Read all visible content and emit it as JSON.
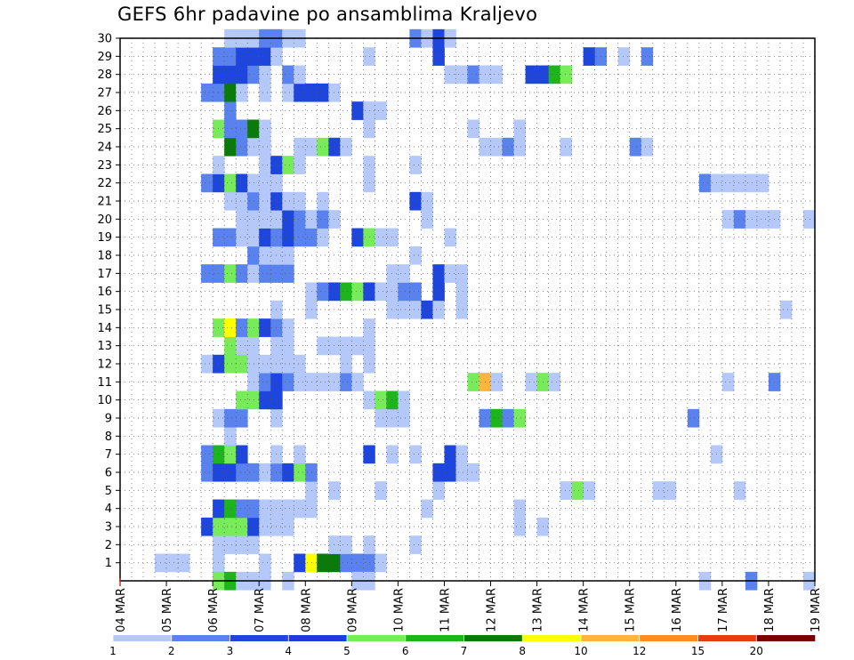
{
  "chart_data": {
    "type": "heatmap",
    "title": "GEFS 6hr padavine po ansamblima Kraljevo",
    "xlabel": "",
    "ylabel": "",
    "x_ticks": [
      "04 MAR",
      "05 MAR",
      "06 MAR",
      "07 MAR",
      "08 MAR",
      "09 MAR",
      "10 MAR",
      "11 MAR",
      "12 MAR",
      "13 MAR",
      "14 MAR",
      "15 MAR",
      "16 MAR",
      "17 MAR",
      "18 MAR",
      "19 MAR"
    ],
    "y_ticks": [
      "1",
      "2",
      "3",
      "4",
      "5",
      "6",
      "7",
      "8",
      "9",
      "10",
      "11",
      "12",
      "13",
      "14",
      "15",
      "16",
      "17",
      "18",
      "19",
      "20",
      "21",
      "22",
      "23",
      "24",
      "25",
      "26",
      "27",
      "28",
      "29",
      "30"
    ],
    "x_range_steps": [
      0,
      60
    ],
    "y_range_members": [
      0,
      30
    ],
    "grid": true,
    "colorbar": {
      "labels": [
        "1",
        "2",
        "3",
        "4",
        "5",
        "6",
        "7",
        "8",
        "10",
        "12",
        "15",
        "20"
      ],
      "colors": [
        "#b4c8fa",
        "#5a82ee",
        "#1e46dc",
        "#1e3cdc",
        "#78eb5a",
        "#1eb41e",
        "#0a7a0a",
        "#ffff00",
        "#ffb43c",
        "#ff8c1e",
        "#e63c14",
        "#780000"
      ]
    },
    "cells": [
      [
        3,
        1,
        1
      ],
      [
        4,
        1,
        1
      ],
      [
        5,
        1,
        1
      ],
      [
        8,
        1,
        1
      ],
      [
        12,
        1,
        1
      ],
      [
        15,
        1,
        3
      ],
      [
        16,
        1,
        8
      ],
      [
        17,
        1,
        7
      ],
      [
        18,
        1,
        7
      ],
      [
        19,
        1,
        2
      ],
      [
        20,
        1,
        2
      ],
      [
        21,
        1,
        2
      ],
      [
        22,
        1,
        1
      ],
      [
        8,
        2,
        1
      ],
      [
        9,
        2,
        1
      ],
      [
        10,
        2,
        1
      ],
      [
        11,
        2,
        1
      ],
      [
        18,
        2,
        1
      ],
      [
        19,
        2,
        1
      ],
      [
        21,
        2,
        1
      ],
      [
        25,
        2,
        1
      ],
      [
        7,
        3,
        3
      ],
      [
        8,
        3,
        5
      ],
      [
        9,
        3,
        5
      ],
      [
        10,
        3,
        5
      ],
      [
        11,
        3,
        3
      ],
      [
        12,
        3,
        1
      ],
      [
        13,
        3,
        1
      ],
      [
        14,
        3,
        1
      ],
      [
        34,
        3,
        1
      ],
      [
        36,
        3,
        1
      ],
      [
        8,
        4,
        3
      ],
      [
        9,
        4,
        6
      ],
      [
        10,
        4,
        2
      ],
      [
        11,
        4,
        2
      ],
      [
        12,
        4,
        1
      ],
      [
        13,
        4,
        1
      ],
      [
        14,
        4,
        1
      ],
      [
        15,
        4,
        1
      ],
      [
        16,
        4,
        1
      ],
      [
        26,
        4,
        1
      ],
      [
        34,
        4,
        1
      ],
      [
        16,
        5,
        1
      ],
      [
        18,
        5,
        1
      ],
      [
        22,
        5,
        1
      ],
      [
        27,
        5,
        1
      ],
      [
        38,
        5,
        1
      ],
      [
        39,
        5,
        5
      ],
      [
        40,
        5,
        1
      ],
      [
        46,
        5,
        1
      ],
      [
        47,
        5,
        1
      ],
      [
        53,
        5,
        1
      ],
      [
        7,
        6,
        2
      ],
      [
        8,
        6,
        3
      ],
      [
        9,
        6,
        3
      ],
      [
        10,
        6,
        2
      ],
      [
        11,
        6,
        2
      ],
      [
        12,
        6,
        1
      ],
      [
        13,
        6,
        2
      ],
      [
        14,
        6,
        3
      ],
      [
        15,
        6,
        5
      ],
      [
        16,
        6,
        2
      ],
      [
        27,
        6,
        3
      ],
      [
        28,
        6,
        3
      ],
      [
        29,
        6,
        1
      ],
      [
        30,
        6,
        1
      ],
      [
        7,
        7,
        2
      ],
      [
        8,
        7,
        6
      ],
      [
        9,
        7,
        5
      ],
      [
        10,
        7,
        3
      ],
      [
        13,
        7,
        1
      ],
      [
        15,
        7,
        1
      ],
      [
        21,
        7,
        3
      ],
      [
        23,
        7,
        1
      ],
      [
        25,
        7,
        1
      ],
      [
        28,
        7,
        3
      ],
      [
        29,
        7,
        1
      ],
      [
        51,
        7,
        1
      ],
      [
        9,
        8,
        1
      ],
      [
        8,
        9,
        1
      ],
      [
        9,
        9,
        2
      ],
      [
        10,
        9,
        2
      ],
      [
        13,
        9,
        1
      ],
      [
        22,
        9,
        1
      ],
      [
        23,
        9,
        1
      ],
      [
        24,
        9,
        1
      ],
      [
        31,
        9,
        2
      ],
      [
        32,
        9,
        6
      ],
      [
        33,
        9,
        2
      ],
      [
        34,
        9,
        5
      ],
      [
        49,
        9,
        2
      ],
      [
        10,
        10,
        5
      ],
      [
        11,
        10,
        5
      ],
      [
        12,
        10,
        3
      ],
      [
        13,
        10,
        3
      ],
      [
        21,
        10,
        1
      ],
      [
        22,
        10,
        5
      ],
      [
        23,
        10,
        6
      ],
      [
        24,
        10,
        1
      ],
      [
        11,
        11,
        1
      ],
      [
        12,
        11,
        2
      ],
      [
        13,
        11,
        3
      ],
      [
        14,
        11,
        2
      ],
      [
        15,
        11,
        1
      ],
      [
        16,
        11,
        1
      ],
      [
        17,
        11,
        1
      ],
      [
        18,
        11,
        1
      ],
      [
        19,
        11,
        2
      ],
      [
        20,
        11,
        1
      ],
      [
        30,
        11,
        5
      ],
      [
        31,
        11,
        9
      ],
      [
        32,
        11,
        1
      ],
      [
        35,
        11,
        1
      ],
      [
        36,
        11,
        5
      ],
      [
        37,
        11,
        1
      ],
      [
        52,
        11,
        1
      ],
      [
        56,
        11,
        2
      ],
      [
        7,
        12,
        1
      ],
      [
        8,
        12,
        3
      ],
      [
        9,
        12,
        5
      ],
      [
        10,
        12,
        5
      ],
      [
        11,
        12,
        1
      ],
      [
        12,
        12,
        1
      ],
      [
        13,
        12,
        1
      ],
      [
        14,
        12,
        1
      ],
      [
        15,
        12,
        1
      ],
      [
        19,
        12,
        1
      ],
      [
        21,
        12,
        1
      ],
      [
        9,
        13,
        5
      ],
      [
        10,
        13,
        1
      ],
      [
        11,
        13,
        1
      ],
      [
        13,
        13,
        1
      ],
      [
        14,
        13,
        1
      ],
      [
        17,
        13,
        1
      ],
      [
        18,
        13,
        1
      ],
      [
        19,
        13,
        1
      ],
      [
        20,
        13,
        1
      ],
      [
        21,
        13,
        1
      ],
      [
        8,
        14,
        5
      ],
      [
        9,
        14,
        8
      ],
      [
        10,
        14,
        2
      ],
      [
        11,
        14,
        5
      ],
      [
        12,
        14,
        3
      ],
      [
        13,
        14,
        2
      ],
      [
        14,
        14,
        1
      ],
      [
        21,
        14,
        1
      ],
      [
        13,
        15,
        1
      ],
      [
        16,
        15,
        1
      ],
      [
        23,
        15,
        1
      ],
      [
        24,
        15,
        1
      ],
      [
        25,
        15,
        1
      ],
      [
        26,
        15,
        3
      ],
      [
        27,
        15,
        1
      ],
      [
        29,
        15,
        1
      ],
      [
        57,
        15,
        1
      ],
      [
        16,
        16,
        1
      ],
      [
        17,
        16,
        2
      ],
      [
        18,
        16,
        3
      ],
      [
        19,
        16,
        6
      ],
      [
        20,
        16,
        5
      ],
      [
        21,
        16,
        3
      ],
      [
        22,
        16,
        1
      ],
      [
        23,
        16,
        1
      ],
      [
        24,
        16,
        2
      ],
      [
        25,
        16,
        2
      ],
      [
        27,
        16,
        3
      ],
      [
        29,
        16,
        1
      ],
      [
        7,
        17,
        2
      ],
      [
        8,
        17,
        2
      ],
      [
        9,
        17,
        5
      ],
      [
        10,
        17,
        2
      ],
      [
        11,
        17,
        1
      ],
      [
        12,
        17,
        2
      ],
      [
        13,
        17,
        2
      ],
      [
        14,
        17,
        2
      ],
      [
        23,
        17,
        1
      ],
      [
        24,
        17,
        1
      ],
      [
        27,
        17,
        3
      ],
      [
        28,
        17,
        1
      ],
      [
        29,
        17,
        1
      ],
      [
        11,
        18,
        2
      ],
      [
        12,
        18,
        1
      ],
      [
        13,
        18,
        1
      ],
      [
        14,
        18,
        1
      ],
      [
        25,
        18,
        1
      ],
      [
        8,
        19,
        2
      ],
      [
        9,
        19,
        2
      ],
      [
        10,
        19,
        1
      ],
      [
        11,
        19,
        1
      ],
      [
        12,
        19,
        3
      ],
      [
        13,
        19,
        2
      ],
      [
        14,
        19,
        3
      ],
      [
        15,
        19,
        2
      ],
      [
        16,
        19,
        2
      ],
      [
        17,
        19,
        1
      ],
      [
        20,
        19,
        3
      ],
      [
        21,
        19,
        5
      ],
      [
        22,
        19,
        1
      ],
      [
        23,
        19,
        1
      ],
      [
        28,
        19,
        1
      ],
      [
        10,
        20,
        1
      ],
      [
        11,
        20,
        1
      ],
      [
        12,
        20,
        1
      ],
      [
        13,
        20,
        1
      ],
      [
        14,
        20,
        3
      ],
      [
        15,
        20,
        2
      ],
      [
        16,
        20,
        1
      ],
      [
        17,
        20,
        2
      ],
      [
        18,
        20,
        1
      ],
      [
        26,
        20,
        1
      ],
      [
        52,
        20,
        1
      ],
      [
        53,
        20,
        2
      ],
      [
        54,
        20,
        1
      ],
      [
        55,
        20,
        1
      ],
      [
        56,
        20,
        1
      ],
      [
        59,
        20,
        1
      ],
      [
        9,
        21,
        1
      ],
      [
        10,
        21,
        1
      ],
      [
        11,
        21,
        2
      ],
      [
        12,
        21,
        1
      ],
      [
        13,
        21,
        3
      ],
      [
        14,
        21,
        1
      ],
      [
        15,
        21,
        1
      ],
      [
        17,
        21,
        1
      ],
      [
        25,
        21,
        3
      ],
      [
        26,
        21,
        1
      ],
      [
        7,
        22,
        2
      ],
      [
        8,
        22,
        3
      ],
      [
        9,
        22,
        5
      ],
      [
        10,
        22,
        3
      ],
      [
        11,
        22,
        1
      ],
      [
        12,
        22,
        1
      ],
      [
        13,
        22,
        1
      ],
      [
        21,
        22,
        1
      ],
      [
        50,
        22,
        2
      ],
      [
        51,
        22,
        1
      ],
      [
        52,
        22,
        1
      ],
      [
        53,
        22,
        1
      ],
      [
        54,
        22,
        1
      ],
      [
        55,
        22,
        1
      ],
      [
        8,
        23,
        1
      ],
      [
        12,
        23,
        1
      ],
      [
        13,
        23,
        3
      ],
      [
        14,
        23,
        5
      ],
      [
        15,
        23,
        1
      ],
      [
        21,
        23,
        1
      ],
      [
        25,
        23,
        1
      ],
      [
        9,
        24,
        7
      ],
      [
        10,
        24,
        2
      ],
      [
        11,
        24,
        1
      ],
      [
        12,
        24,
        1
      ],
      [
        15,
        24,
        1
      ],
      [
        16,
        24,
        1
      ],
      [
        17,
        24,
        5
      ],
      [
        18,
        24,
        3
      ],
      [
        19,
        24,
        1
      ],
      [
        31,
        24,
        1
      ],
      [
        32,
        24,
        1
      ],
      [
        33,
        24,
        2
      ],
      [
        34,
        24,
        1
      ],
      [
        38,
        24,
        1
      ],
      [
        44,
        24,
        2
      ],
      [
        45,
        24,
        1
      ],
      [
        8,
        25,
        5
      ],
      [
        9,
        25,
        2
      ],
      [
        10,
        25,
        2
      ],
      [
        11,
        25,
        7
      ],
      [
        12,
        25,
        1
      ],
      [
        21,
        25,
        1
      ],
      [
        30,
        25,
        1
      ],
      [
        34,
        25,
        1
      ],
      [
        9,
        26,
        2
      ],
      [
        20,
        26,
        3
      ],
      [
        21,
        26,
        1
      ],
      [
        22,
        26,
        1
      ],
      [
        7,
        27,
        2
      ],
      [
        8,
        27,
        2
      ],
      [
        9,
        27,
        7
      ],
      [
        10,
        27,
        1
      ],
      [
        12,
        27,
        1
      ],
      [
        14,
        27,
        1
      ],
      [
        15,
        27,
        3
      ],
      [
        16,
        27,
        3
      ],
      [
        17,
        27,
        3
      ],
      [
        18,
        27,
        1
      ],
      [
        8,
        28,
        3
      ],
      [
        9,
        28,
        3
      ],
      [
        10,
        28,
        3
      ],
      [
        11,
        28,
        2
      ],
      [
        12,
        28,
        1
      ],
      [
        14,
        28,
        2
      ],
      [
        15,
        28,
        1
      ],
      [
        28,
        28,
        1
      ],
      [
        29,
        28,
        1
      ],
      [
        30,
        28,
        2
      ],
      [
        31,
        28,
        1
      ],
      [
        32,
        28,
        1
      ],
      [
        35,
        28,
        3
      ],
      [
        36,
        28,
        3
      ],
      [
        37,
        28,
        6
      ],
      [
        38,
        28,
        5
      ],
      [
        8,
        29,
        2
      ],
      [
        9,
        29,
        2
      ],
      [
        10,
        29,
        3
      ],
      [
        11,
        29,
        3
      ],
      [
        12,
        29,
        3
      ],
      [
        13,
        29,
        1
      ],
      [
        21,
        29,
        1
      ],
      [
        27,
        29,
        3
      ],
      [
        40,
        29,
        3
      ],
      [
        41,
        29,
        2
      ],
      [
        43,
        29,
        1
      ],
      [
        45,
        29,
        2
      ],
      [
        9,
        30,
        1
      ],
      [
        10,
        30,
        1
      ],
      [
        11,
        30,
        1
      ],
      [
        12,
        30,
        2
      ],
      [
        13,
        30,
        2
      ],
      [
        14,
        30,
        1
      ],
      [
        15,
        30,
        1
      ],
      [
        25,
        30,
        2
      ],
      [
        26,
        30,
        1
      ],
      [
        27,
        30,
        3
      ],
      [
        28,
        30,
        1
      ],
      [
        8,
        0,
        5
      ],
      [
        9,
        0,
        6
      ],
      [
        10,
        0,
        1
      ],
      [
        11,
        0,
        1
      ],
      [
        12,
        0,
        1
      ],
      [
        14,
        0,
        1
      ],
      [
        20,
        0,
        1
      ],
      [
        21,
        0,
        1
      ],
      [
        50,
        0,
        1
      ],
      [
        54,
        0,
        2
      ],
      [
        59,
        0,
        1
      ]
    ]
  }
}
